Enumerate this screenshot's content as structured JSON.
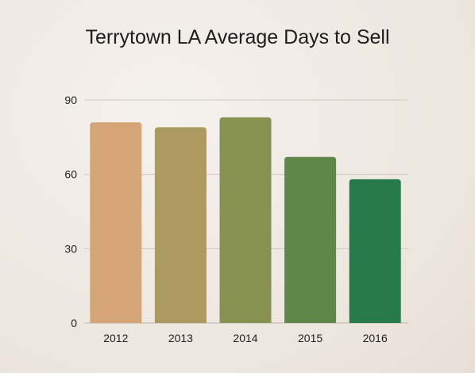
{
  "chart_data": {
    "type": "bar",
    "title": "Terrytown LA Average Days to Sell",
    "xlabel": "",
    "ylabel": "",
    "categories": [
      "2012",
      "2013",
      "2014",
      "2015",
      "2016"
    ],
    "values": [
      81,
      79,
      83,
      67,
      58
    ],
    "bar_colors": [
      "#d4a576",
      "#ac9a5e",
      "#879150",
      "#5f8749",
      "#277a4a"
    ],
    "ylim": [
      0,
      90
    ],
    "yticks": [
      0,
      30,
      60,
      90
    ],
    "grid": true,
    "legend": "none"
  }
}
